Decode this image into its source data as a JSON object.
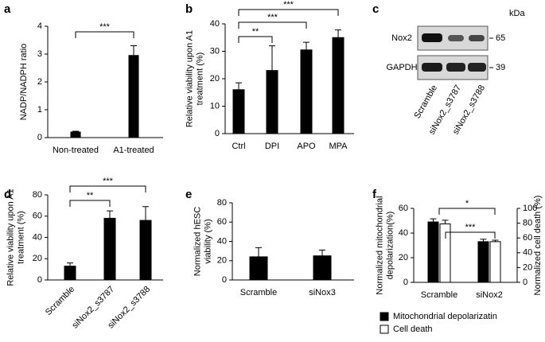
{
  "chart_data": [
    {
      "type": "bar",
      "panel": "a",
      "ylabel": "NADP/NADPH ratio",
      "categories": [
        "Non-treated",
        "A1-treated"
      ],
      "series": [
        {
          "color": "#000000",
          "values": [
            0.2,
            2.95
          ],
          "error": [
            0.03,
            0.35
          ]
        }
      ],
      "ylim": [
        0,
        4
      ],
      "yticks": [
        0,
        1,
        2,
        3,
        4
      ],
      "annotations": [
        "***"
      ]
    },
    {
      "type": "bar",
      "panel": "b",
      "ylabel": "Relative viability upon A1 treatment (%)",
      "categories": [
        "Ctrl",
        "DPI",
        "APO",
        "MPA"
      ],
      "series": [
        {
          "color": "#000000",
          "values": [
            16,
            23,
            30.5,
            35
          ],
          "error": [
            2.5,
            9,
            2.8,
            2.8
          ]
        }
      ],
      "ylim": [
        0,
        40
      ],
      "yticks": [
        0,
        10,
        20,
        30,
        40
      ],
      "annotations": [
        "**",
        "***",
        "***"
      ]
    },
    {
      "type": "bar",
      "panel": "d",
      "ylabel": "Relative viability upon A1 treatment (%)",
      "categories": [
        "Scramble",
        "siNox2_s3787",
        "siNox2_s3788"
      ],
      "series": [
        {
          "color": "#000000",
          "values": [
            13,
            58,
            56
          ],
          "error": [
            3,
            7,
            13
          ]
        }
      ],
      "ylim": [
        0,
        80
      ],
      "yticks": [
        0,
        20,
        40,
        60,
        80
      ],
      "annotations": [
        "**",
        "***"
      ]
    },
    {
      "type": "bar",
      "panel": "e",
      "ylabel": "Normalized hESC viability (%)",
      "categories": [
        "Scramble",
        "siNox3"
      ],
      "series": [
        {
          "color": "#000000",
          "values": [
            24,
            25
          ],
          "error": [
            9.5,
            6
          ]
        }
      ],
      "ylim": [
        0,
        80
      ],
      "yticks": [
        0,
        20,
        40,
        60,
        80
      ],
      "annotations": []
    },
    {
      "type": "bar",
      "panel": "f",
      "ylabel": "Normalized mitochondrial depolarization(%)",
      "y2label": "Normalized cell death (%)",
      "categories": [
        "Scramble",
        "siNox2"
      ],
      "series": [
        {
          "name": "Mitochondrial depolarizatin",
          "color": "#000000",
          "values": [
            49,
            33
          ],
          "error": [
            2.5,
            2
          ]
        },
        {
          "name": "Cell death",
          "color": "#ffffff",
          "axis": "y2",
          "values": [
            79,
            55
          ],
          "error": [
            5,
            2
          ]
        }
      ],
      "ylim": [
        0,
        60
      ],
      "yticks": [
        0,
        20,
        40,
        60
      ],
      "y2lim": [
        0,
        100
      ],
      "y2ticks": [
        0,
        20,
        40,
        60,
        80,
        100
      ],
      "annotations": [
        "***",
        "*"
      ]
    }
  ],
  "blot": {
    "panel": "c",
    "unit": "kDa",
    "rows": [
      {
        "protein": "Nox2",
        "kda": 65
      },
      {
        "protein": "GAPDH",
        "kda": 39
      }
    ],
    "lanes": [
      "Scramble",
      "siNox2_s3787",
      "siNox2_s3788"
    ]
  }
}
